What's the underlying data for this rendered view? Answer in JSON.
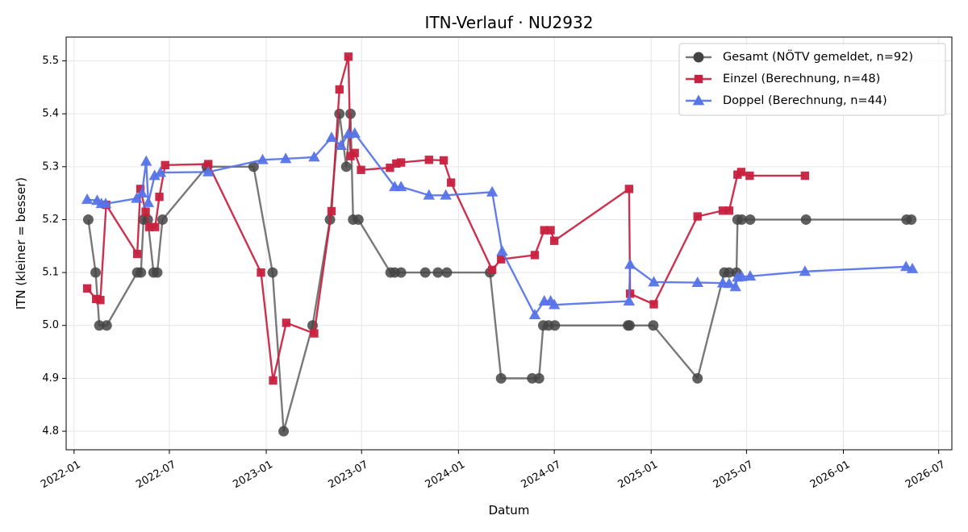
{
  "chart_data": {
    "type": "line",
    "title": "ITN-Verlauf · NU2932",
    "xlabel": "Datum",
    "ylabel": "ITN  (kleiner = besser)",
    "x_type": "date",
    "xlim": [
      "2021-12-17",
      "2026-07-26"
    ],
    "ylim": [
      4.765,
      5.545
    ],
    "x_ticks": [
      "2022-01-01",
      "2022-07-01",
      "2023-01-01",
      "2023-07-01",
      "2024-01-01",
      "2024-07-01",
      "2025-01-01",
      "2025-07-01",
      "2026-01-01",
      "2026-07-01"
    ],
    "x_tick_labels": [
      "2022-01",
      "2022-07",
      "2023-01",
      "2023-07",
      "2024-01",
      "2024-07",
      "2025-01",
      "2025-07",
      "2026-01",
      "2026-07"
    ],
    "y_ticks": [
      4.8,
      4.9,
      5.0,
      5.1,
      5.2,
      5.3,
      5.4,
      5.5
    ],
    "y_tick_labels": [
      "4.8",
      "4.9",
      "5.0",
      "5.1",
      "5.2",
      "5.3",
      "5.4",
      "5.5"
    ],
    "grid": true,
    "legend_position": "top-right",
    "series": [
      {
        "name": "Gesamt (NÖTV gemeldet, n=92)",
        "color": "#444444",
        "marker": "circle",
        "points": [
          [
            "2022-01-28",
            5.2
          ],
          [
            "2022-02-11",
            5.1
          ],
          [
            "2022-02-18",
            5.0
          ],
          [
            "2022-03-04",
            5.0
          ],
          [
            "2022-05-01",
            5.1
          ],
          [
            "2022-05-08",
            5.1
          ],
          [
            "2022-05-13",
            5.2
          ],
          [
            "2022-05-21",
            5.2
          ],
          [
            "2022-06-01",
            5.1
          ],
          [
            "2022-06-08",
            5.1
          ],
          [
            "2022-06-18",
            5.2
          ],
          [
            "2022-09-10",
            5.3
          ],
          [
            "2022-12-08",
            5.3
          ],
          [
            "2023-01-13",
            5.1
          ],
          [
            "2023-02-03",
            4.8
          ],
          [
            "2023-03-30",
            5.0
          ],
          [
            "2023-05-02",
            5.2
          ],
          [
            "2023-05-20",
            5.4
          ],
          [
            "2023-06-02",
            5.3
          ],
          [
            "2023-06-10",
            5.4
          ],
          [
            "2023-06-15",
            5.2
          ],
          [
            "2023-06-25",
            5.2
          ],
          [
            "2023-08-25",
            5.1
          ],
          [
            "2023-09-02",
            5.1
          ],
          [
            "2023-09-14",
            5.1
          ],
          [
            "2023-10-30",
            5.1
          ],
          [
            "2023-11-23",
            5.1
          ],
          [
            "2023-12-10",
            5.1
          ],
          [
            "2024-03-01",
            5.1
          ],
          [
            "2024-03-22",
            4.9
          ],
          [
            "2024-05-20",
            4.9
          ],
          [
            "2024-06-02",
            4.9
          ],
          [
            "2024-06-10",
            5.0
          ],
          [
            "2024-06-20",
            5.0
          ],
          [
            "2024-07-02",
            5.0
          ],
          [
            "2024-11-18",
            5.0
          ],
          [
            "2024-11-21",
            5.0
          ],
          [
            "2025-01-05",
            5.0
          ],
          [
            "2025-03-30",
            4.9
          ],
          [
            "2025-05-20",
            5.1
          ],
          [
            "2025-05-29",
            5.1
          ],
          [
            "2025-06-12",
            5.1
          ],
          [
            "2025-06-14",
            5.2
          ],
          [
            "2025-06-22",
            5.2
          ],
          [
            "2025-07-08",
            5.2
          ],
          [
            "2025-10-22",
            5.2
          ],
          [
            "2026-05-01",
            5.2
          ],
          [
            "2026-05-10",
            5.2
          ]
        ]
      },
      {
        "name": "Einzel (Berechnung, n=48)",
        "color": "#c8203f",
        "marker": "square",
        "points": [
          [
            "2022-01-26",
            5.07
          ],
          [
            "2022-02-12",
            5.05
          ],
          [
            "2022-02-20",
            5.048
          ],
          [
            "2022-03-03",
            5.228
          ],
          [
            "2022-05-01",
            5.135
          ],
          [
            "2022-05-07",
            5.258
          ],
          [
            "2022-05-17",
            5.215
          ],
          [
            "2022-05-24",
            5.186
          ],
          [
            "2022-06-04",
            5.186
          ],
          [
            "2022-06-12",
            5.243
          ],
          [
            "2022-06-23",
            5.303
          ],
          [
            "2022-09-13",
            5.305
          ],
          [
            "2022-12-22",
            5.1
          ],
          [
            "2023-01-14",
            4.896
          ],
          [
            "2023-02-08",
            5.005
          ],
          [
            "2023-04-02",
            4.985
          ],
          [
            "2023-05-05",
            5.216
          ],
          [
            "2023-05-20",
            5.446
          ],
          [
            "2023-06-06",
            5.508
          ],
          [
            "2023-06-10",
            5.32
          ],
          [
            "2023-06-18",
            5.326
          ],
          [
            "2023-06-30",
            5.294
          ],
          [
            "2023-08-24",
            5.298
          ],
          [
            "2023-09-05",
            5.306
          ],
          [
            "2023-09-14",
            5.308
          ],
          [
            "2023-11-06",
            5.313
          ],
          [
            "2023-12-04",
            5.312
          ],
          [
            "2023-12-18",
            5.27
          ],
          [
            "2024-03-05",
            5.105
          ],
          [
            "2024-03-22",
            5.125
          ],
          [
            "2024-05-25",
            5.133
          ],
          [
            "2024-06-12",
            5.18
          ],
          [
            "2024-06-24",
            5.18
          ],
          [
            "2024-07-01",
            5.16
          ],
          [
            "2024-11-20",
            5.258
          ],
          [
            "2024-11-22",
            5.06
          ],
          [
            "2025-01-06",
            5.04
          ],
          [
            "2025-03-30",
            5.206
          ],
          [
            "2025-05-17",
            5.217
          ],
          [
            "2025-05-29",
            5.217
          ],
          [
            "2025-06-14",
            5.285
          ],
          [
            "2025-06-21",
            5.29
          ],
          [
            "2025-07-07",
            5.283
          ],
          [
            "2025-10-20",
            5.283
          ]
        ]
      },
      {
        "name": "Doppel (Berechnung, n=44)",
        "color": "#5673e8",
        "marker": "triangle",
        "points": [
          [
            "2022-01-26",
            5.238
          ],
          [
            "2022-02-14",
            5.236
          ],
          [
            "2022-02-22",
            5.23
          ],
          [
            "2022-03-02",
            5.23
          ],
          [
            "2022-04-30",
            5.24
          ],
          [
            "2022-05-10",
            5.25
          ],
          [
            "2022-05-18",
            5.31
          ],
          [
            "2022-05-22",
            5.232
          ],
          [
            "2022-06-03",
            5.283
          ],
          [
            "2022-06-14",
            5.289
          ],
          [
            "2022-09-13",
            5.29
          ],
          [
            "2022-12-25",
            5.313
          ],
          [
            "2023-02-07",
            5.315
          ],
          [
            "2023-04-02",
            5.318
          ],
          [
            "2023-05-05",
            5.355
          ],
          [
            "2023-05-23",
            5.34
          ],
          [
            "2023-06-06",
            5.362
          ],
          [
            "2023-06-18",
            5.363
          ],
          [
            "2023-09-02",
            5.262
          ],
          [
            "2023-09-14",
            5.262
          ],
          [
            "2023-11-06",
            5.246
          ],
          [
            "2023-12-08",
            5.246
          ],
          [
            "2024-03-05",
            5.252
          ],
          [
            "2024-03-24",
            5.14
          ],
          [
            "2024-05-25",
            5.02
          ],
          [
            "2024-06-12",
            5.046
          ],
          [
            "2024-06-24",
            5.046
          ],
          [
            "2024-07-01",
            5.039
          ],
          [
            "2024-11-20",
            5.046
          ],
          [
            "2024-11-22",
            5.115
          ],
          [
            "2025-01-06",
            5.082
          ],
          [
            "2025-03-30",
            5.081
          ],
          [
            "2025-05-17",
            5.08
          ],
          [
            "2025-05-29",
            5.079
          ],
          [
            "2025-06-10",
            5.073
          ],
          [
            "2025-06-14",
            5.091
          ],
          [
            "2025-06-22",
            5.092
          ],
          [
            "2025-07-08",
            5.093
          ],
          [
            "2025-10-20",
            5.102
          ],
          [
            "2026-04-30",
            5.111
          ],
          [
            "2026-05-12",
            5.107
          ]
        ]
      }
    ]
  }
}
